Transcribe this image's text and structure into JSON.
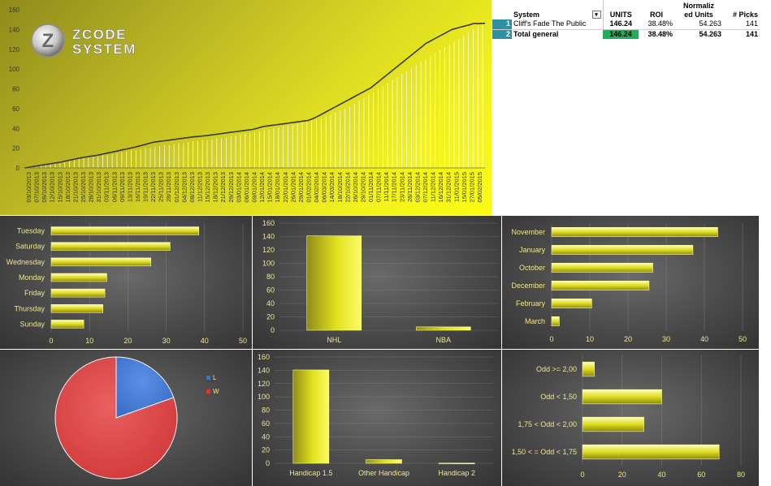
{
  "logo": {
    "line1": "ZCODE",
    "line2": "SYSTEM"
  },
  "table": {
    "header": {
      "system": "System",
      "units": "UNITS",
      "roi": "ROI",
      "normalized_line1": "Normaliz",
      "normalized_line2": "ed Units",
      "picks": "# Picks"
    },
    "rows": [
      {
        "index": "1",
        "system": "Cliff's Fade The Public",
        "units": "146.24",
        "roi": "38.48%",
        "normalized": "54.263",
        "picks": "141"
      },
      {
        "index": "2",
        "system": "Total general",
        "units": "146.24",
        "roi": "38.48%",
        "normalized": "54.263",
        "picks": "141"
      }
    ],
    "colors": {
      "index_bg": "#2f8fa3",
      "highlight": "#1fae5a"
    }
  },
  "chart_data": [
    {
      "type": "area",
      "ylim": [
        0,
        160
      ],
      "yticks": [
        0,
        20,
        40,
        60,
        80,
        100,
        120,
        140,
        160
      ],
      "x_labels": [
        "03/10/2013",
        "07/10/2013",
        "09/10/2013",
        "12/10/2013",
        "15/10/2013",
        "18/10/2013",
        "21/10/2013",
        "25/10/2013",
        "28/10/2013",
        "31/10/2013",
        "03/11/2013",
        "06/11/2013",
        "09/11/2013",
        "13/11/2013",
        "16/11/2013",
        "19/11/2013",
        "22/11/2013",
        "25/11/2013",
        "28/11/2013",
        "01/12/2013",
        "04/12/2013",
        "08/12/2013",
        "11/12/2013",
        "15/12/2013",
        "18/12/2013",
        "21/12/2013",
        "29/12/2013",
        "03/01/2014",
        "06/01/2014",
        "09/01/2014",
        "12/01/2014",
        "15/01/2014",
        "18/01/2014",
        "22/01/2014",
        "26/01/2014",
        "29/01/2014",
        "01/02/2014",
        "04/02/2014",
        "06/03/2014",
        "14/03/2014",
        "18/10/2014",
        "22/10/2014",
        "26/10/2014",
        "29/10/2014",
        "01/11/2014",
        "07/11/2014",
        "11/11/2014",
        "17/11/2014",
        "23/11/2014",
        "28/11/2014",
        "03/12/2014",
        "07/12/2014",
        "11/12/2014",
        "16/12/2014",
        "31/12/2014",
        "11/01/2015",
        "15/01/2015",
        "27/01/2015",
        "05/02/2015"
      ],
      "values": [
        0,
        0.6,
        1.2,
        1.8,
        2.4,
        3,
        3.6,
        4.2,
        4.8,
        5.4,
        6,
        6.8,
        7.6,
        8.4,
        9.2,
        10,
        10.6,
        11.2,
        11.8,
        12.4,
        13,
        13.8,
        14.6,
        15.4,
        16.2,
        17,
        17.8,
        18.6,
        19.4,
        20.2,
        21,
        22,
        23,
        24,
        25,
        26,
        26.5,
        27,
        27.5,
        28,
        28.5,
        29,
        29.5,
        30,
        30.5,
        31,
        31.4,
        31.8,
        32.2,
        32.6,
        33,
        33.5,
        34,
        34.5,
        35,
        35.5,
        36,
        36.5,
        37,
        37.5,
        38,
        38.5,
        39,
        40,
        41,
        42,
        42.5,
        43,
        43.5,
        44,
        44.5,
        45,
        45.5,
        46,
        46.5,
        47,
        47.5,
        48,
        49.5,
        51,
        53,
        55,
        57,
        59,
        61,
        63,
        65,
        67,
        69,
        71,
        73,
        75,
        77,
        79,
        81,
        84,
        87,
        90,
        93,
        96,
        99,
        102,
        105,
        108,
        111,
        114,
        117,
        120,
        123,
        126,
        128,
        130,
        132,
        134,
        136,
        138,
        140,
        141,
        142,
        143,
        144,
        145,
        146.24,
        146,
        146.24,
        146.24
      ],
      "bar_ticks": [
        1,
        2,
        2,
        3,
        4,
        5,
        6,
        6,
        7,
        8,
        9,
        10,
        10,
        11,
        12,
        12,
        13,
        13,
        14,
        15,
        16,
        17,
        18,
        18,
        19,
        20,
        20,
        21,
        22,
        23,
        23,
        24,
        25,
        25,
        26,
        27,
        27,
        28,
        28,
        29,
        30,
        30,
        31,
        32,
        33,
        34,
        35,
        35,
        36,
        37,
        38,
        39,
        40,
        41,
        42,
        43,
        44,
        45,
        46,
        47,
        48,
        49,
        50,
        52,
        54,
        56,
        58,
        60,
        62,
        65,
        68,
        71,
        74,
        77,
        80,
        83,
        86,
        89,
        92,
        95,
        98,
        101,
        104,
        107,
        110,
        113,
        116,
        119,
        122,
        125,
        128,
        131,
        134,
        137,
        140,
        143,
        146
      ]
    },
    {
      "type": "bar",
      "orientation": "horizontal",
      "categories": [
        "Tuesday",
        "Saturday",
        "Wednesday",
        "Monday",
        "Friday",
        "Thursday",
        "Sunday"
      ],
      "values": [
        38.5,
        31,
        26,
        14.5,
        14,
        13.5,
        8.5
      ],
      "xlim": [
        0,
        50
      ],
      "xticks": [
        0,
        10,
        20,
        30,
        40,
        50
      ]
    },
    {
      "type": "bar",
      "categories": [
        "NHL",
        "NBA"
      ],
      "values": [
        141,
        5
      ],
      "ylim": [
        0,
        160
      ],
      "yticks": [
        0,
        20,
        40,
        60,
        80,
        100,
        120,
        140,
        160
      ]
    },
    {
      "type": "bar",
      "orientation": "horizontal",
      "categories": [
        "November",
        "January",
        "October",
        "December",
        "February",
        "March"
      ],
      "values": [
        43.5,
        37,
        26.5,
        25.5,
        10.5,
        2
      ],
      "xlim": [
        0,
        50
      ],
      "xticks": [
        0,
        10,
        20,
        30,
        40,
        50
      ]
    },
    {
      "type": "pie",
      "labels": [
        "L",
        "W"
      ],
      "values": [
        19.6,
        80.4
      ],
      "colors": [
        "#3a70c8",
        "#d23a3a"
      ],
      "legend": "right"
    },
    {
      "type": "bar",
      "categories": [
        "Handicap 1.5",
        "Other Handicap",
        "Handicap 2"
      ],
      "values": [
        140.5,
        5.5,
        0.3
      ],
      "ylim": [
        0,
        160
      ],
      "yticks": [
        0,
        20,
        40,
        60,
        80,
        100,
        120,
        140,
        160
      ]
    },
    {
      "type": "bar",
      "orientation": "horizontal",
      "categories": [
        "Odd >= 2,00",
        "Odd < 1,50",
        "1,75 < Odd < 2,00",
        "1,50 < = Odd < 1,75"
      ],
      "values": [
        6,
        40,
        31,
        69
      ],
      "xlim": [
        0,
        80
      ],
      "xticks": [
        0,
        20,
        40,
        60,
        80
      ]
    }
  ]
}
